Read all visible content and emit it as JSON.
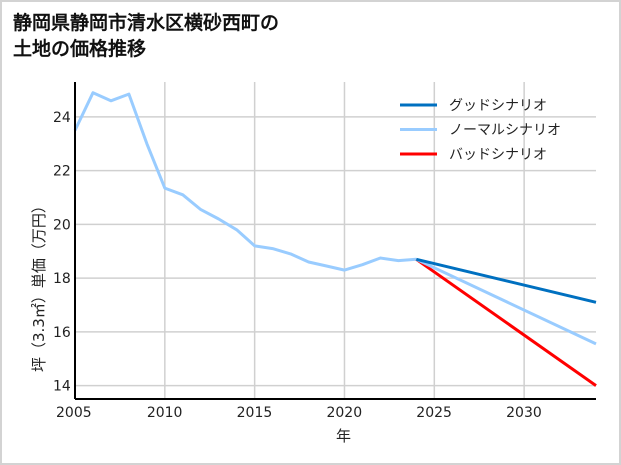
{
  "title_lines": [
    "静岡県静岡市清水区横砂西町の",
    "土地の価格推移"
  ],
  "chart_data": {
    "type": "line",
    "title": "静岡県静岡市清水区横砂西町の土地の価格推移",
    "xlabel": "年",
    "ylabel": "坪（3.3㎡）単価（万円）",
    "xlim": [
      2005,
      2034
    ],
    "ylim": [
      13.5,
      25.3
    ],
    "xticks": [
      2005,
      2010,
      2015,
      2020,
      2025,
      2030
    ],
    "yticks": [
      14,
      16,
      18,
      20,
      22,
      24
    ],
    "grid": true,
    "legend_position": "upper right",
    "series": [
      {
        "name": "ノーマルシナリオ (実績)",
        "color": "#99ccff",
        "x": [
          2005,
          2006,
          2007,
          2008,
          2009,
          2010,
          2011,
          2012,
          2013,
          2014,
          2015,
          2016,
          2017,
          2018,
          2019,
          2020,
          2021,
          2022,
          2023,
          2024
        ],
        "y": [
          23.5,
          24.9,
          24.6,
          24.85,
          23.0,
          21.35,
          21.1,
          20.55,
          20.2,
          19.8,
          19.2,
          19.1,
          18.9,
          18.6,
          18.45,
          18.3,
          18.5,
          18.75,
          18.65,
          18.7
        ]
      },
      {
        "name": "グッドシナリオ",
        "color": "#0070c0",
        "x": [
          2024,
          2034
        ],
        "y": [
          18.7,
          17.1
        ]
      },
      {
        "name": "ノーマルシナリオ",
        "color": "#99ccff",
        "x": [
          2024,
          2034
        ],
        "y": [
          18.7,
          15.55
        ]
      },
      {
        "name": "バッドシナリオ",
        "color": "#ff0000",
        "x": [
          2024,
          2034
        ],
        "y": [
          18.7,
          14.0
        ]
      }
    ]
  },
  "legend": [
    {
      "label": "グッドシナリオ",
      "color": "#0070c0"
    },
    {
      "label": "ノーマルシナリオ",
      "color": "#99ccff"
    },
    {
      "label": "バッドシナリオ",
      "color": "#ff0000"
    }
  ]
}
